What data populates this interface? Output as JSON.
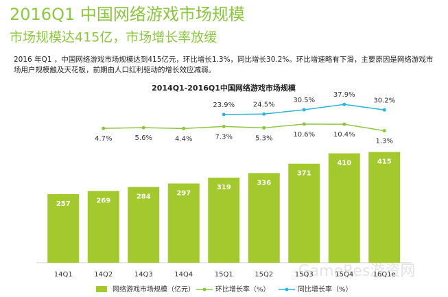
{
  "header": {
    "title": "2016Q1 中国网络游戏市场规模",
    "subtitle": "市场规模达415亿，市场增长率放缓",
    "text": "2016 年Q1 ，中国网络游戏市场规模达到415亿元，环比增长1.3%，同比增长30.2%。环比增速略有下滑，主要原因是网络游戏市场用户规模触及天花板，前期由人口红利驱动的增长效应减弱。"
  },
  "watermark": "GameRes游资网",
  "chart_data": {
    "type": "bar",
    "title": "2014Q1-2016Q1中国网络游戏市场规模",
    "categories": [
      "14Q1",
      "14Q2",
      "14Q3",
      "14Q4",
      "15Q1",
      "15Q2",
      "15Q3",
      "15Q4",
      "16Q1e"
    ],
    "ylim": [
      0,
      450
    ],
    "y2lim": [
      0,
      40
    ],
    "series": [
      {
        "name": "网络游戏市场规模（亿元）",
        "type": "bar",
        "color": "#a3c92f",
        "values": [
          257,
          269,
          284,
          297,
          319,
          336,
          371,
          410,
          415
        ]
      },
      {
        "name": "环比增长率（%）",
        "type": "line",
        "axis": "y2",
        "color": "#8dc63f",
        "values": [
          null,
          4.7,
          5.6,
          4.4,
          7.3,
          5.3,
          10.6,
          10.4,
          1.3
        ],
        "value_labels": [
          null,
          "4.7%",
          "5.6%",
          "4.4%",
          "7.3%",
          "5.3%",
          "10.6%",
          "10.4%",
          "1.3%"
        ]
      },
      {
        "name": "同比增长率（%）",
        "type": "line",
        "axis": "y2",
        "color": "#29b6d9",
        "values": [
          null,
          null,
          null,
          null,
          23.9,
          24.5,
          30.5,
          37.9,
          30.2
        ],
        "value_labels": [
          null,
          null,
          null,
          null,
          "23.9%",
          "24.5%",
          "30.5%",
          "37.9%",
          "30.2%"
        ]
      }
    ]
  }
}
